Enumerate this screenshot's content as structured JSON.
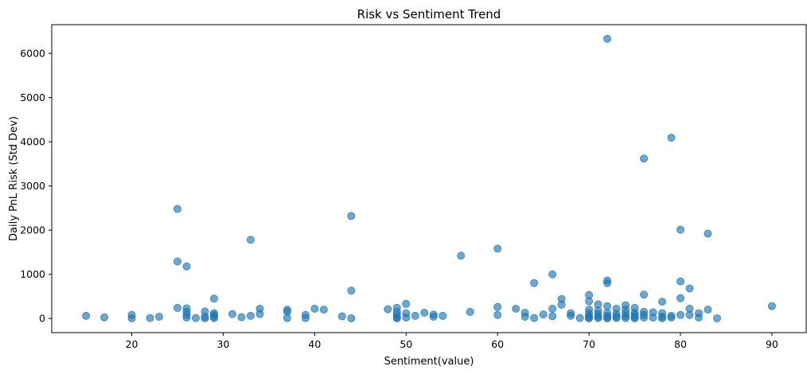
{
  "chart_data": {
    "type": "scatter",
    "title": "Risk vs Sentiment Trend",
    "xlabel": "Sentiment(value)",
    "ylabel": "Daily PnL Risk (Std Dev)",
    "xlim": [
      11.25,
      93.75
    ],
    "ylim": [
      -320,
      6650
    ],
    "xticks": [
      20,
      30,
      40,
      50,
      60,
      70,
      80,
      90
    ],
    "yticks": [
      0,
      1000,
      2000,
      3000,
      4000,
      5000,
      6000
    ],
    "grid": false,
    "marker_color": "#1f77b4",
    "marker_alpha": 0.65,
    "points": [
      [
        15,
        60
      ],
      [
        17,
        25
      ],
      [
        20,
        80
      ],
      [
        20,
        5
      ],
      [
        22,
        10
      ],
      [
        23,
        40
      ],
      [
        25,
        2480
      ],
      [
        25,
        1290
      ],
      [
        25,
        240
      ],
      [
        26,
        1180
      ],
      [
        26,
        230
      ],
      [
        26,
        150
      ],
      [
        26,
        80
      ],
      [
        26,
        20
      ],
      [
        27,
        10
      ],
      [
        28,
        160
      ],
      [
        28,
        40
      ],
      [
        28,
        5
      ],
      [
        29,
        450
      ],
      [
        29,
        120
      ],
      [
        29,
        80
      ],
      [
        29,
        40
      ],
      [
        29,
        10
      ],
      [
        31,
        100
      ],
      [
        32,
        30
      ],
      [
        33,
        1780
      ],
      [
        33,
        60
      ],
      [
        34,
        220
      ],
      [
        34,
        100
      ],
      [
        37,
        200
      ],
      [
        37,
        150
      ],
      [
        37,
        10
      ],
      [
        39,
        80
      ],
      [
        39,
        10
      ],
      [
        40,
        220
      ],
      [
        41,
        200
      ],
      [
        43,
        50
      ],
      [
        44,
        2320
      ],
      [
        44,
        630
      ],
      [
        44,
        5
      ],
      [
        48,
        210
      ],
      [
        49,
        240
      ],
      [
        49,
        150
      ],
      [
        49,
        80
      ],
      [
        49,
        20
      ],
      [
        49,
        5
      ],
      [
        50,
        330
      ],
      [
        50,
        120
      ],
      [
        50,
        20
      ],
      [
        51,
        60
      ],
      [
        52,
        130
      ],
      [
        53,
        90
      ],
      [
        53,
        40
      ],
      [
        54,
        60
      ],
      [
        56,
        1420
      ],
      [
        57,
        150
      ],
      [
        60,
        1580
      ],
      [
        60,
        260
      ],
      [
        60,
        80
      ],
      [
        62,
        220
      ],
      [
        63,
        130
      ],
      [
        63,
        40
      ],
      [
        64,
        800
      ],
      [
        64,
        10
      ],
      [
        65,
        90
      ],
      [
        66,
        1000
      ],
      [
        66,
        220
      ],
      [
        66,
        50
      ],
      [
        67,
        440
      ],
      [
        67,
        310
      ],
      [
        68,
        120
      ],
      [
        68,
        60
      ],
      [
        69,
        10
      ],
      [
        70,
        530
      ],
      [
        70,
        390
      ],
      [
        70,
        200
      ],
      [
        70,
        120
      ],
      [
        70,
        60
      ],
      [
        70,
        20
      ],
      [
        70,
        5
      ],
      [
        71,
        320
      ],
      [
        71,
        180
      ],
      [
        71,
        100
      ],
      [
        71,
        40
      ],
      [
        71,
        10
      ],
      [
        72,
        6330
      ],
      [
        72,
        860
      ],
      [
        72,
        800
      ],
      [
        72,
        280
      ],
      [
        72,
        130
      ],
      [
        72,
        60
      ],
      [
        72,
        20
      ],
      [
        72,
        5
      ],
      [
        73,
        220
      ],
      [
        73,
        100
      ],
      [
        73,
        40
      ],
      [
        73,
        10
      ],
      [
        74,
        300
      ],
      [
        74,
        200
      ],
      [
        74,
        120
      ],
      [
        74,
        50
      ],
      [
        74,
        10
      ],
      [
        75,
        240
      ],
      [
        75,
        130
      ],
      [
        75,
        80
      ],
      [
        75,
        30
      ],
      [
        75,
        5
      ],
      [
        76,
        3620
      ],
      [
        76,
        540
      ],
      [
        76,
        150
      ],
      [
        76,
        80
      ],
      [
        76,
        20
      ],
      [
        77,
        140
      ],
      [
        77,
        20
      ],
      [
        78,
        380
      ],
      [
        78,
        120
      ],
      [
        78,
        40
      ],
      [
        78,
        5
      ],
      [
        79,
        4090
      ],
      [
        79,
        60
      ],
      [
        79,
        20
      ],
      [
        80,
        2010
      ],
      [
        80,
        840
      ],
      [
        80,
        460
      ],
      [
        80,
        80
      ],
      [
        81,
        680
      ],
      [
        81,
        220
      ],
      [
        81,
        80
      ],
      [
        82,
        120
      ],
      [
        82,
        20
      ],
      [
        83,
        1920
      ],
      [
        83,
        200
      ],
      [
        84,
        5
      ],
      [
        90,
        280
      ]
    ]
  }
}
